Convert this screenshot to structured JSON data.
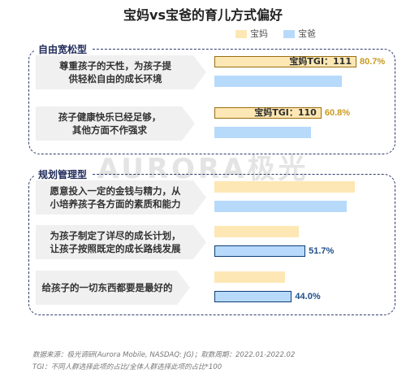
{
  "title": "宝妈vs宝爸的育儿方式偏好",
  "watermark": "AURORA极光",
  "groups": [
    {
      "label": "自由宽松型"
    },
    {
      "label": "规划管理型"
    }
  ],
  "chart_data": {
    "type": "bar",
    "orientation": "horizontal",
    "series": [
      {
        "name": "宝妈",
        "color": "#fde7b4"
      },
      {
        "name": "宝爸",
        "color": "#b7dafb"
      }
    ],
    "rows": [
      {
        "text": "尊重孩子的天性，为孩子提\n供轻松自由的成长环境",
        "group": 0,
        "mom": 80.7,
        "dad": 72.5,
        "highlight": "mom",
        "tgi_label": "宝妈TGI：111",
        "value_label": "80.7%"
      },
      {
        "text": "孩子健康快乐已经足够，\n其他方面不作强求",
        "group": 0,
        "mom": 60.8,
        "dad": 55.0,
        "highlight": "mom",
        "tgi_label": "宝妈TGI：110",
        "value_label": "60.8%"
      },
      {
        "text": "愿意投入一定的金钱与精力，从\n小培养孩子各方面的素质和能力",
        "group": 1,
        "mom": 80.0,
        "dad": 75.0,
        "highlight": null,
        "tgi_label": "",
        "value_label": ""
      },
      {
        "text": "为孩子制定了详尽的成长计划，\n让孩子按照既定的成长路线发展",
        "group": 1,
        "mom": 48.0,
        "dad": 51.7,
        "highlight": "dad",
        "tgi_label": "",
        "value_label": "51.7%"
      },
      {
        "text": "给孩子的一切东西都要是最好的",
        "group": 1,
        "mom": 40.0,
        "dad": 44.0,
        "highlight": "dad",
        "tgi_label": "",
        "value_label": "44.0%"
      }
    ]
  },
  "footnotes": [
    "数据来源：极光调研(Aurora Mobile, NASDAQ: JG)；取数周期：2022.01-2022.02",
    "TGI：不同人群选择此项的占比/全体人群选择此项的占比*100"
  ]
}
